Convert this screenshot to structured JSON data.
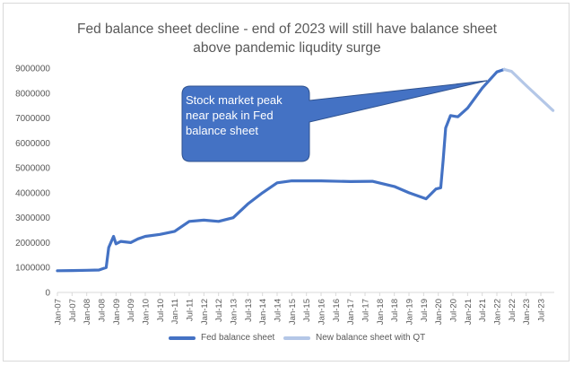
{
  "chart_data": {
    "type": "line",
    "title_lines": [
      "Fed balance sheet decline - end of 2023 will still have balance sheet",
      "above pandemic liqudity surge"
    ],
    "xlabel": "",
    "ylabel": "",
    "ylim": [
      0,
      9000000
    ],
    "y_ticks": [
      "0",
      "1000000",
      "2000000",
      "3000000",
      "4000000",
      "5000000",
      "6000000",
      "7000000",
      "8000000",
      "9000000"
    ],
    "x_ticks": [
      "Jan-07",
      "Jul-07",
      "Jan-08",
      "Jul-08",
      "Jan-09",
      "Jul-09",
      "Jan-10",
      "Jul-10",
      "Jan-11",
      "Jul-11",
      "Jan-12",
      "Jul-12",
      "Jan-13",
      "Jul-13",
      "Jan-14",
      "Jul-14",
      "Jan-15",
      "Jul-15",
      "Jan-16",
      "Jul-16",
      "Jan-17",
      "Jul-17",
      "Jan-18",
      "Jul-18",
      "Jan-19",
      "Jul-19",
      "Jan-20",
      "Jul-20",
      "Jan-21",
      "Jul-21",
      "Jan-22",
      "Jul-22",
      "Jan-23",
      "Jul-23"
    ],
    "grid": false,
    "legend_position": "bottom",
    "series": [
      {
        "name": "Fed balance sheet",
        "color": "#4472c4",
        "points": [
          [
            "2007-01",
            870000
          ],
          [
            "2007-07",
            880000
          ],
          [
            "2008-01",
            890000
          ],
          [
            "2008-06",
            900000
          ],
          [
            "2008-09",
            1000000
          ],
          [
            "2008-10",
            1800000
          ],
          [
            "2008-12",
            2250000
          ],
          [
            "2009-01",
            1950000
          ],
          [
            "2009-03",
            2050000
          ],
          [
            "2009-07",
            2000000
          ],
          [
            "2009-10",
            2150000
          ],
          [
            "2010-01",
            2250000
          ],
          [
            "2010-07",
            2330000
          ],
          [
            "2011-01",
            2450000
          ],
          [
            "2011-07",
            2850000
          ],
          [
            "2012-01",
            2900000
          ],
          [
            "2012-07",
            2850000
          ],
          [
            "2013-01",
            3000000
          ],
          [
            "2013-07",
            3550000
          ],
          [
            "2014-01",
            4000000
          ],
          [
            "2014-07",
            4400000
          ],
          [
            "2015-01",
            4480000
          ],
          [
            "2016-01",
            4480000
          ],
          [
            "2017-01",
            4450000
          ],
          [
            "2017-10",
            4460000
          ],
          [
            "2018-07",
            4250000
          ],
          [
            "2019-01",
            4000000
          ],
          [
            "2019-08",
            3760000
          ],
          [
            "2019-12",
            4150000
          ],
          [
            "2020-02",
            4200000
          ],
          [
            "2020-03",
            5300000
          ],
          [
            "2020-04",
            6600000
          ],
          [
            "2020-06",
            7100000
          ],
          [
            "2020-09",
            7050000
          ],
          [
            "2021-01",
            7400000
          ],
          [
            "2021-07",
            8200000
          ],
          [
            "2022-01",
            8850000
          ],
          [
            "2022-04",
            8950000
          ]
        ]
      },
      {
        "name": "New balance sheet with QT",
        "color": "#b4c7e7",
        "points": [
          [
            "2022-04",
            8950000
          ],
          [
            "2022-07",
            8870000
          ],
          [
            "2023-01",
            8300000
          ],
          [
            "2023-12",
            7300000
          ]
        ]
      }
    ],
    "annotations": [
      {
        "text": "Stock market peak near peak in Fed balance sheet",
        "lines": [
          "Stock market peak",
          "near peak in Fed",
          "balance sheet"
        ],
        "points_to": [
          "2021-09",
          8500000
        ],
        "fill": "#4472c4"
      }
    ]
  }
}
